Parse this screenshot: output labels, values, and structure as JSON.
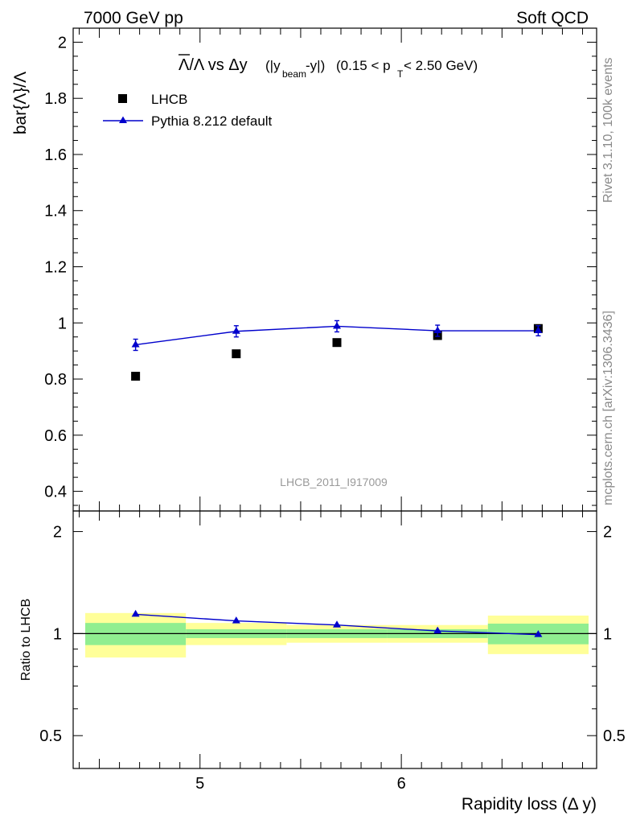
{
  "header": {
    "left": "7000 GeV pp",
    "right": "Soft QCD"
  },
  "side_labels": {
    "top": "Rivet 3.1.10,  100k events",
    "bottom": "mcplots.cern.ch [arXiv:1306.3436]"
  },
  "main_plot": {
    "title_text": "(0.15 < p",
    "title_sub_T": "T",
    "title_tail": " < 2.50 GeV)",
    "ylabel": "bar{Λ}/Λ",
    "watermark": "LHCB_2011_I917009",
    "legend": [
      {
        "label": "LHCB",
        "marker": "square",
        "color": "#000000"
      },
      {
        "label": "Pythia 8.212 default",
        "marker": "triangle",
        "color": "#0000cc"
      }
    ]
  },
  "ratio_plot": {
    "ylabel": "Ratio to LHCB"
  },
  "chart_data": {
    "type": "scatter",
    "title": "Λ̄/Λ vs Δy (|y_beam-y|) (0.15 < p_T < 2.50 GeV)",
    "xlabel": "Rapidity loss (Δ y)",
    "ylabel": "bar{Λ}/Λ",
    "xlim": [
      4.37,
      6.97
    ],
    "ylim": [
      0.33,
      2.05
    ],
    "x_ticks": [
      "5",
      "6"
    ],
    "y_ticks": [
      "0.4",
      "0.6",
      "0.8",
      "1",
      "1.2",
      "1.4",
      "1.6",
      "1.8",
      "2"
    ],
    "x": [
      4.68,
      5.18,
      5.68,
      6.18,
      6.68
    ],
    "bin_edges": [
      4.43,
      4.93,
      5.43,
      5.93,
      6.43,
      6.93
    ],
    "series": [
      {
        "name": "LHCB",
        "values": [
          0.81,
          0.89,
          0.93,
          0.955,
          0.98
        ],
        "color": "#000000"
      },
      {
        "name": "Pythia 8.212 default",
        "values": [
          0.922,
          0.97,
          0.988,
          0.972,
          0.972
        ],
        "errors": [
          0.02,
          0.02,
          0.02,
          0.02,
          0.018
        ],
        "color": "#0000cc"
      }
    ],
    "ratio": {
      "ylabel": "Ratio to LHCB",
      "ylim": [
        0.4,
        2.3
      ],
      "y_ticks": [
        "0.5",
        "1",
        "2"
      ],
      "values": [
        1.14,
        1.09,
        1.06,
        1.018,
        0.993
      ],
      "band_inner": [
        0.075,
        0.03,
        0.03,
        0.03,
        0.07
      ],
      "band_outer": [
        0.15,
        0.075,
        0.06,
        0.06,
        0.13
      ],
      "band_inner_color": "#90ee90",
      "band_outer_color": "#ffff99"
    },
    "grid": false,
    "legend_position": "top-left"
  }
}
